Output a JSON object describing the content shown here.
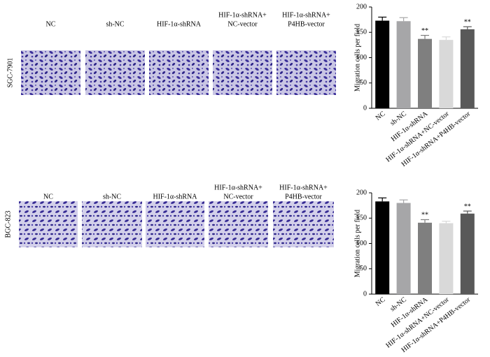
{
  "image_panels": [
    {
      "row_label": "SGC-7901",
      "columns": [
        [
          "NC"
        ],
        [
          "sh-NC"
        ],
        [
          "HIF-1α-shRNA"
        ],
        [
          "HIF-1α-shRNA+",
          "NC-vector"
        ],
        [
          "HIF-1α-shRNA+",
          "P4HB-vector"
        ]
      ]
    },
    {
      "row_label": "BGC-823",
      "columns": [
        [
          "NC"
        ],
        [
          "sh-NC"
        ],
        [
          "HIF-1α-shRNA"
        ],
        [
          "HIF-1α-shRNA+",
          "NC-vector"
        ],
        [
          "HIF-1α-shRNA+",
          "P4HB-vector"
        ]
      ]
    }
  ],
  "chart_data": [
    {
      "type": "bar",
      "y_label": "Migration cells per field",
      "categories": [
        "NC",
        "sh-NC",
        "HIF-1α-shRNA",
        "HIF-1α-shRNA+NC-vector",
        "HIF-1α-shRNA+P4HB-vector"
      ],
      "values": [
        173,
        172,
        137,
        135,
        156
      ],
      "errors": [
        7,
        7,
        7,
        6,
        5
      ],
      "colors": [
        "#000000",
        "#a6a6a8",
        "#7f7f7f",
        "#d9d9d9",
        "#595959"
      ],
      "annotations": [
        null,
        null,
        "**",
        null,
        "**"
      ],
      "ylim": [
        0,
        200
      ],
      "yticks": [
        0,
        50,
        100,
        150,
        200
      ]
    },
    {
      "type": "bar",
      "y_label": "Migration cells per field",
      "categories": [
        "NC",
        "sh-NC",
        "HIF-1α-shRNA",
        "HIF-1α-shRNA+NC-vector",
        "HIF-1α-shRNA+P4HB-vector"
      ],
      "values": [
        183,
        180,
        141,
        140,
        159
      ],
      "errors": [
        7,
        6,
        6,
        4,
        5
      ],
      "colors": [
        "#000000",
        "#a6a6a8",
        "#7f7f7f",
        "#d9d9d9",
        "#595959"
      ],
      "annotations": [
        null,
        null,
        "**",
        null,
        "**"
      ],
      "ylim": [
        0,
        200
      ],
      "yticks": [
        0,
        50,
        100,
        150,
        200
      ]
    }
  ]
}
